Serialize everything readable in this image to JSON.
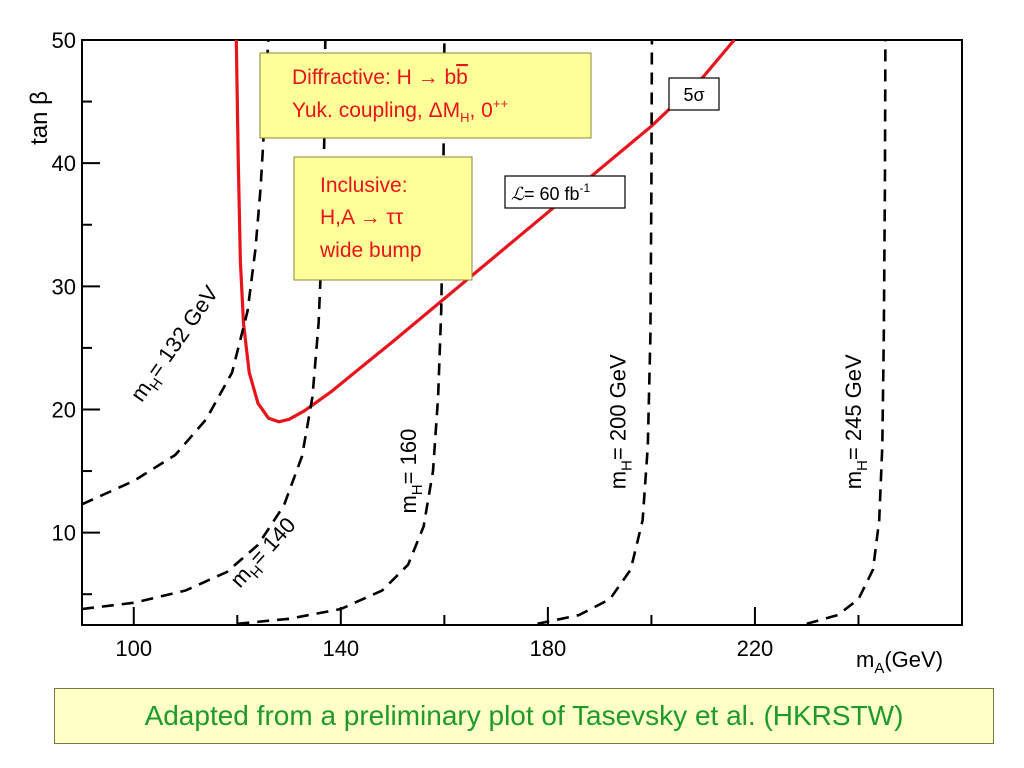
{
  "chart_data": {
    "type": "line",
    "title": "",
    "xlabel": "m_A(GeV)",
    "ylabel": "tan β",
    "xlim": [
      90,
      260
    ],
    "ylim": [
      2.5,
      50
    ],
    "x_ticks": [
      100,
      140,
      180,
      220
    ],
    "y_ticks": [
      10,
      20,
      30,
      40,
      50
    ],
    "grid": false,
    "series": [
      {
        "name": "5σ",
        "style": "solid",
        "color": "#e8141b",
        "points": [
          [
            119.8,
            50
          ],
          [
            120.2,
            40
          ],
          [
            120.6,
            32
          ],
          [
            121.2,
            27
          ],
          [
            122.3,
            23
          ],
          [
            124.0,
            20.5
          ],
          [
            126.0,
            19.3
          ],
          [
            128.0,
            19.0
          ],
          [
            130.0,
            19.2
          ],
          [
            133.0,
            19.9
          ],
          [
            138.0,
            21.4
          ],
          [
            150.0,
            25.5
          ],
          [
            170.0,
            32.5
          ],
          [
            190.0,
            39.5
          ],
          [
            200.0,
            43.0
          ],
          [
            210.0,
            47.0
          ],
          [
            216.0,
            50.0
          ]
        ]
      },
      {
        "name": "m_H = 132 GeV",
        "style": "dashed",
        "color": "#000000",
        "points": [
          [
            90,
            12.3
          ],
          [
            100,
            14.2
          ],
          [
            108,
            16.3
          ],
          [
            114,
            19.2
          ],
          [
            119,
            23.0
          ],
          [
            122,
            28.0
          ],
          [
            123.5,
            33.0
          ],
          [
            124.5,
            38.0
          ],
          [
            125.2,
            43.0
          ],
          [
            125.7,
            48.0
          ],
          [
            126.0,
            50.0
          ]
        ]
      },
      {
        "name": "m_H = 140",
        "style": "dashed",
        "color": "#000000",
        "points": [
          [
            90,
            3.8
          ],
          [
            100,
            4.3
          ],
          [
            110,
            5.3
          ],
          [
            118,
            6.8
          ],
          [
            124,
            9.0
          ],
          [
            129,
            12.2
          ],
          [
            132.5,
            16.2
          ],
          [
            134.5,
            21.0
          ],
          [
            135.7,
            27.0
          ],
          [
            136.4,
            34.0
          ],
          [
            136.8,
            42.0
          ],
          [
            137.0,
            50.0
          ]
        ]
      },
      {
        "name": "m_H = 160",
        "style": "dashed",
        "color": "#000000",
        "points": [
          [
            120,
            2.6
          ],
          [
            130,
            3.0
          ],
          [
            140,
            3.8
          ],
          [
            148,
            5.3
          ],
          [
            153,
            7.4
          ],
          [
            156,
            10.5
          ],
          [
            157.8,
            15.0
          ],
          [
            158.8,
            21.0
          ],
          [
            159.4,
            28.0
          ],
          [
            159.8,
            38.0
          ],
          [
            160.0,
            50.0
          ]
        ]
      },
      {
        "name": "m_H = 200 GeV",
        "style": "dashed",
        "color": "#000000",
        "points": [
          [
            178,
            2.6
          ],
          [
            186,
            3.3
          ],
          [
            192,
            4.6
          ],
          [
            196,
            7.0
          ],
          [
            198.3,
            11.0
          ],
          [
            199.3,
            17.0
          ],
          [
            199.8,
            26.0
          ],
          [
            200.0,
            38.0
          ],
          [
            200.1,
            50.0
          ]
        ]
      },
      {
        "name": "m_H = 245 GeV",
        "style": "dashed",
        "color": "#000000",
        "points": [
          [
            230,
            2.6
          ],
          [
            236,
            3.3
          ],
          [
            240,
            4.6
          ],
          [
            242.8,
            7.0
          ],
          [
            244.0,
            11.0
          ],
          [
            244.6,
            17.0
          ],
          [
            244.9,
            26.0
          ],
          [
            245.1,
            38.0
          ],
          [
            245.2,
            50.0
          ]
        ]
      }
    ],
    "curve_labels": [
      {
        "base": "m",
        "sub": "H",
        "rest": "= 132 GeV",
        "x": 109,
        "y": 25,
        "angle": -55
      },
      {
        "base": "m",
        "sub": "H",
        "rest": "= 140",
        "x": 126,
        "y": 8,
        "angle": -48
      },
      {
        "base": "m",
        "sub": "H",
        "rest": "= 160",
        "x": 154.5,
        "y": 15,
        "angle": -90
      },
      {
        "base": "m",
        "sub": "H",
        "rest": "= 200 GeV",
        "x": 195,
        "y": 19,
        "angle": -90
      },
      {
        "base": "m",
        "sub": "H",
        "rest": "= 245 GeV",
        "x": 240.5,
        "y": 19,
        "angle": -90
      }
    ],
    "annotations": {
      "diffractive": {
        "line1": "Diffractive:   H → b",
        "bbar": "b",
        "line2_a": "Yuk. coupling, ΔM",
        "line2_sub": "H",
        "line2_b": ", 0",
        "line2_sup": "++"
      },
      "inclusive": {
        "line1": "Inclusive:",
        "line2": "H,A → ττ",
        "line3": "wide bump"
      },
      "sigma_label": "5σ",
      "lumi": {
        "symbol": "ℒ",
        "text": "= 60 fb",
        "sup": "-1"
      }
    },
    "colors": {
      "signal_curve": "#e8141b",
      "annotation_text": "#e8141b",
      "annotation_box": "#ffff99",
      "caption_text": "#1f9a2a",
      "caption_box": "#ffffc8"
    }
  },
  "caption": "Adapted from a preliminary plot of Tasevsky et al. (HKRSTW)"
}
